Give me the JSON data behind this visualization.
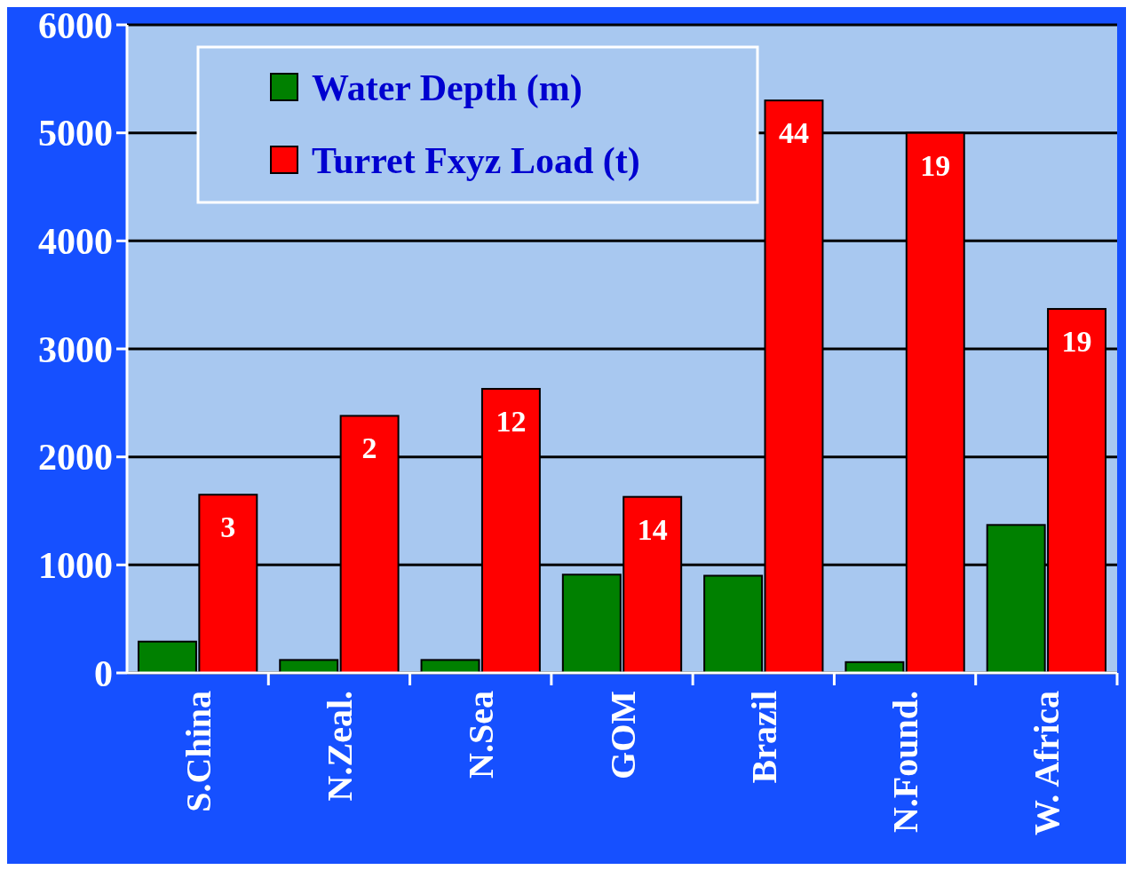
{
  "chart_data": {
    "type": "bar",
    "categories": [
      "S.China",
      "N.Zeal.",
      "N.Sea",
      "GOM",
      "Brazil",
      "N.Found.",
      "W. Africa"
    ],
    "series": [
      {
        "name": "Water Depth (m)",
        "color": "#008000",
        "values": [
          290,
          120,
          120,
          910,
          900,
          100,
          1370
        ]
      },
      {
        "name": "Turret Fxyz Load (t)",
        "color": "#ff0000",
        "values": [
          1650,
          2380,
          2630,
          1630,
          5300,
          5000,
          3370
        ]
      }
    ],
    "annotations": [
      {
        "text": "3",
        "x": "S.China",
        "y": 1650
      },
      {
        "text": "2",
        "x": "N.Zeal.",
        "y": 2380
      },
      {
        "text": "12",
        "x": "N.Sea",
        "y": 2630
      },
      {
        "text": "14",
        "x": "GOM",
        "y": 1630
      },
      {
        "text": "44",
        "x": "Brazil",
        "y": 5300
      },
      {
        "text": "19",
        "x": "N.Found.",
        "y": 5000
      },
      {
        "text": "19",
        "x": "W. Africa",
        "y": 3370
      }
    ],
    "ylim": [
      0,
      6000
    ],
    "yticks": [
      0,
      1000,
      2000,
      3000,
      4000,
      5000,
      6000
    ],
    "grid": "y",
    "legend": "top left"
  }
}
